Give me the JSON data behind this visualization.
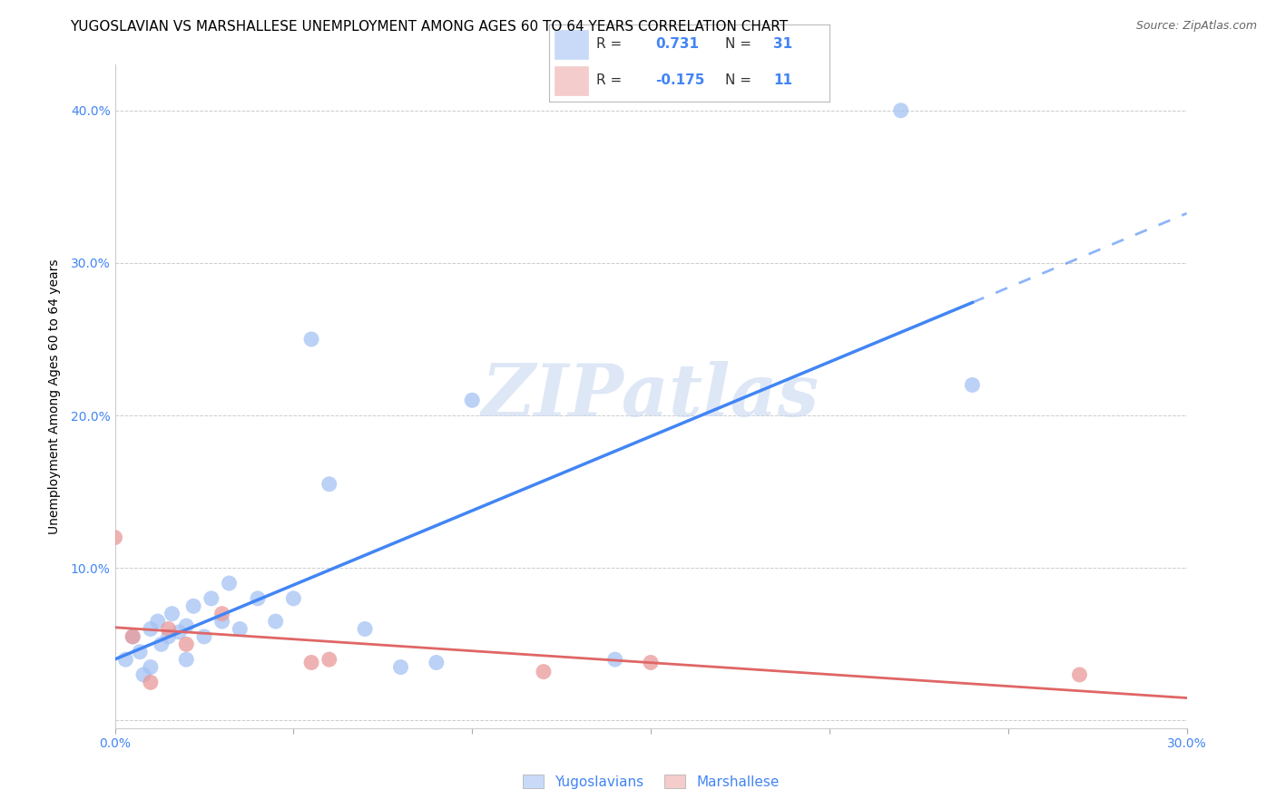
{
  "title": "YUGOSLAVIAN VS MARSHALLESE UNEMPLOYMENT AMONG AGES 60 TO 64 YEARS CORRELATION CHART",
  "source": "Source: ZipAtlas.com",
  "ylabel": "Unemployment Among Ages 60 to 64 years",
  "background_color": "#ffffff",
  "watermark": "ZIPatlas",
  "xlim": [
    0.0,
    0.3
  ],
  "ylim": [
    -0.005,
    0.43
  ],
  "x_ticks": [
    0.0,
    0.05,
    0.1,
    0.15,
    0.2,
    0.25,
    0.3
  ],
  "x_tick_labels": [
    "0.0%",
    "",
    "",
    "",
    "",
    "",
    "30.0%"
  ],
  "y_ticks": [
    0.0,
    0.1,
    0.2,
    0.3,
    0.4
  ],
  "y_tick_labels": [
    "",
    "10.0%",
    "20.0%",
    "30.0%",
    "40.0%"
  ],
  "yug_color": "#a4c2f4",
  "marsh_color": "#ea9999",
  "yug_line_color": "#4285f4",
  "marsh_line_color": "#e06666",
  "legend_box_yug": "#c9daf8",
  "legend_box_marsh": "#f4cccc",
  "R_yug": "0.731",
  "N_yug": "31",
  "R_marsh": "-0.175",
  "N_marsh": "11",
  "yug_scatter_x": [
    0.003,
    0.005,
    0.007,
    0.008,
    0.01,
    0.01,
    0.012,
    0.013,
    0.015,
    0.016,
    0.018,
    0.02,
    0.02,
    0.022,
    0.025,
    0.027,
    0.03,
    0.032,
    0.035,
    0.04,
    0.045,
    0.05,
    0.055,
    0.06,
    0.07,
    0.08,
    0.09,
    0.1,
    0.14,
    0.22,
    0.24
  ],
  "yug_scatter_y": [
    0.04,
    0.055,
    0.045,
    0.03,
    0.06,
    0.035,
    0.065,
    0.05,
    0.055,
    0.07,
    0.058,
    0.062,
    0.04,
    0.075,
    0.055,
    0.08,
    0.065,
    0.09,
    0.06,
    0.08,
    0.065,
    0.08,
    0.25,
    0.155,
    0.06,
    0.035,
    0.038,
    0.21,
    0.04,
    0.4,
    0.22
  ],
  "marsh_scatter_x": [
    0.0,
    0.005,
    0.01,
    0.015,
    0.02,
    0.03,
    0.055,
    0.06,
    0.12,
    0.15,
    0.27
  ],
  "marsh_scatter_y": [
    0.12,
    0.055,
    0.025,
    0.06,
    0.05,
    0.07,
    0.038,
    0.04,
    0.032,
    0.038,
    0.03
  ],
  "grid_color": "#cccccc",
  "title_fontsize": 11,
  "axis_label_fontsize": 10,
  "tick_fontsize": 10,
  "source_fontsize": 9,
  "legend_fontsize": 11
}
